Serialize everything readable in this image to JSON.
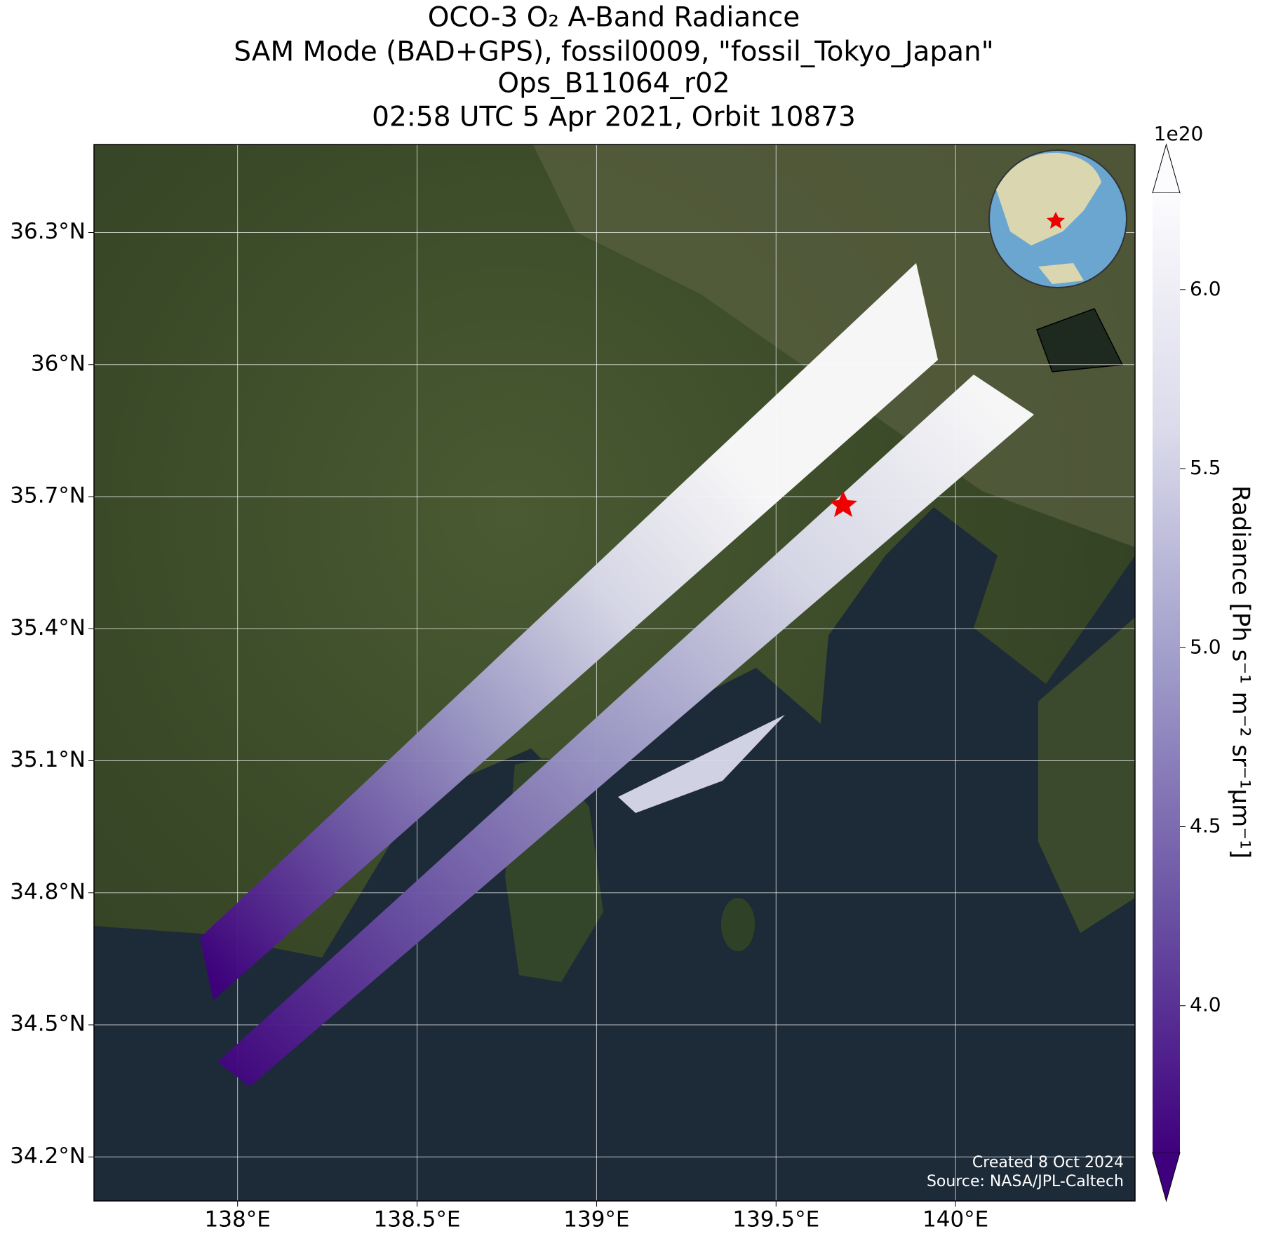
{
  "chart_data": {
    "type": "map",
    "title": [
      "OCO-3 O₂ A-Band Radiance",
      "SAM Mode (BAD+GPS), fossil0009, \"fossil_Tokyo_Japan\"",
      "Ops_B11064_r02",
      "02:58 UTC 5 Apr 2021, Orbit 10873"
    ],
    "xlim": [
      137.6,
      140.5
    ],
    "ylim": [
      34.1,
      36.5
    ],
    "xticks": [
      {
        "value": 138,
        "label": "138°E"
      },
      {
        "value": 138.5,
        "label": "138.5°E"
      },
      {
        "value": 139,
        "label": "139°E"
      },
      {
        "value": 139.5,
        "label": "139.5°E"
      },
      {
        "value": 140,
        "label": "140°E"
      }
    ],
    "yticks": [
      {
        "value": 34.2,
        "label": "34.2°N"
      },
      {
        "value": 34.5,
        "label": "34.5°N"
      },
      {
        "value": 34.8,
        "label": "34.8°N"
      },
      {
        "value": 35.1,
        "label": "35.1°N"
      },
      {
        "value": 35.4,
        "label": "35.4°N"
      },
      {
        "value": 35.7,
        "label": "35.7°N"
      },
      {
        "value": 36,
        "label": "36°N"
      },
      {
        "value": 36.3,
        "label": "36.3°N"
      }
    ],
    "grid": true,
    "colorbar": {
      "label": "Radiance [Ph s⁻¹ m⁻² sr⁻¹μm⁻¹]",
      "offset_text": "1e20",
      "lim": [
        3.59,
        6.27
      ],
      "ticks": [
        {
          "value": 4,
          "label": "4.0"
        },
        {
          "value": 4.5,
          "label": "4.5"
        },
        {
          "value": 5,
          "label": "5.0"
        },
        {
          "value": 5.5,
          "label": "5.5"
        },
        {
          "value": 6,
          "label": "6.0"
        }
      ],
      "colors": [
        "#3f007d",
        "#6a51a3",
        "#9e9ac8",
        "#dadaeb",
        "#fcfbfd"
      ]
    },
    "credits": [
      "Created 8 Oct 2024",
      "Source: NASA/JPL-Caltech"
    ]
  }
}
